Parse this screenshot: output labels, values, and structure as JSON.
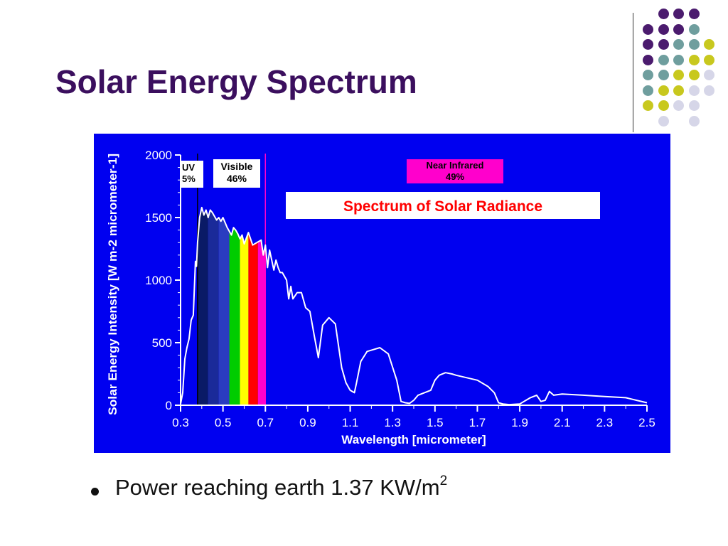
{
  "slide": {
    "title": "Solar Energy Spectrum",
    "bullet_text": "Power reaching earth 1.37 KW/m",
    "bullet_superscript": "2"
  },
  "decoration": {
    "dot_colors": {
      "purple": "#4b1b6e",
      "teal": "#6f9e9e",
      "yellow": "#c8c81e",
      "lavender": "#d6d6e8"
    }
  },
  "chart_data": {
    "type": "line",
    "title": "Spectrum of Solar Radiance",
    "xlabel": "Wavelength [micrometer]",
    "ylabel": "Solar Energy Intensity [W m-2 micrometer-1]",
    "xlim": [
      0.3,
      2.5
    ],
    "ylim": [
      0,
      2000
    ],
    "xticks": [
      "0.3",
      "0.5",
      "0.7",
      "0.9",
      "1.1",
      "1.3",
      "1.5",
      "1.7",
      "1.9",
      "2.1",
      "2.3",
      "2.5"
    ],
    "yticks": [
      "0",
      "500",
      "1000",
      "1500",
      "2000"
    ],
    "regions": [
      {
        "label": "UV",
        "percent": "5%"
      },
      {
        "label": "Visible",
        "percent": "46%"
      },
      {
        "label": "Near Infrared",
        "percent": "49%"
      }
    ],
    "band_colors": [
      "#0a1a66",
      "#1a1a8c",
      "#2233aa",
      "#00cc00",
      "#ffff00",
      "#ff0000",
      "#ff00cc"
    ],
    "bands": [
      {
        "from": 0.38,
        "to": 0.43,
        "color": "#0a1a66"
      },
      {
        "from": 0.43,
        "to": 0.48,
        "color": "#1a2a99"
      },
      {
        "from": 0.48,
        "to": 0.53,
        "color": "#2a3cc0"
      },
      {
        "from": 0.53,
        "to": 0.58,
        "color": "#00cc00"
      },
      {
        "from": 0.58,
        "to": 0.62,
        "color": "#ffff00"
      },
      {
        "from": 0.62,
        "to": 0.665,
        "color": "#ff0000"
      },
      {
        "from": 0.665,
        "to": 0.7,
        "color": "#ff00cc"
      }
    ],
    "series": [
      {
        "x": [
          0.3,
          0.31,
          0.32,
          0.33,
          0.34,
          0.35,
          0.36,
          0.37,
          0.375,
          0.38,
          0.39,
          0.4,
          0.41,
          0.42,
          0.43,
          0.44,
          0.45,
          0.46,
          0.47,
          0.48,
          0.49,
          0.5,
          0.51,
          0.52,
          0.53,
          0.54,
          0.55,
          0.56,
          0.57,
          0.58,
          0.59,
          0.6,
          0.62,
          0.64,
          0.66,
          0.68,
          0.69,
          0.7,
          0.71,
          0.72,
          0.74,
          0.75,
          0.76,
          0.77,
          0.78,
          0.8,
          0.81,
          0.82,
          0.83,
          0.85,
          0.87,
          0.89,
          0.91,
          0.93,
          0.95,
          0.97,
          1.0,
          1.03,
          1.06,
          1.08,
          1.1,
          1.12,
          1.13,
          1.15,
          1.18,
          1.2,
          1.24,
          1.28,
          1.32,
          1.34,
          1.36,
          1.38,
          1.4,
          1.42,
          1.45,
          1.48,
          1.5,
          1.52,
          1.55,
          1.58,
          1.6,
          1.65,
          1.7,
          1.75,
          1.78,
          1.8,
          1.82,
          1.85,
          1.9,
          1.95,
          1.98,
          2.0,
          2.02,
          2.04,
          2.06,
          2.1,
          2.2,
          2.3,
          2.4,
          2.45,
          2.5
        ],
        "values": [
          10,
          100,
          370,
          460,
          530,
          680,
          720,
          1150,
          1110,
          1300,
          1500,
          1580,
          1520,
          1560,
          1500,
          1560,
          1540,
          1510,
          1480,
          1500,
          1470,
          1500,
          1460,
          1420,
          1390,
          1360,
          1420,
          1400,
          1370,
          1330,
          1360,
          1290,
          1380,
          1280,
          1300,
          1320,
          1200,
          1280,
          1100,
          1240,
          1080,
          1160,
          1100,
          1060,
          1060,
          1000,
          850,
          950,
          850,
          900,
          900,
          780,
          750,
          560,
          380,
          640,
          700,
          650,
          300,
          180,
          120,
          100,
          180,
          350,
          430,
          440,
          460,
          410,
          200,
          30,
          20,
          15,
          40,
          80,
          100,
          120,
          200,
          240,
          260,
          250,
          240,
          220,
          200,
          150,
          100,
          20,
          10,
          5,
          10,
          60,
          80,
          30,
          40,
          110,
          80,
          90,
          80,
          70,
          60,
          40,
          20
        ]
      }
    ]
  }
}
